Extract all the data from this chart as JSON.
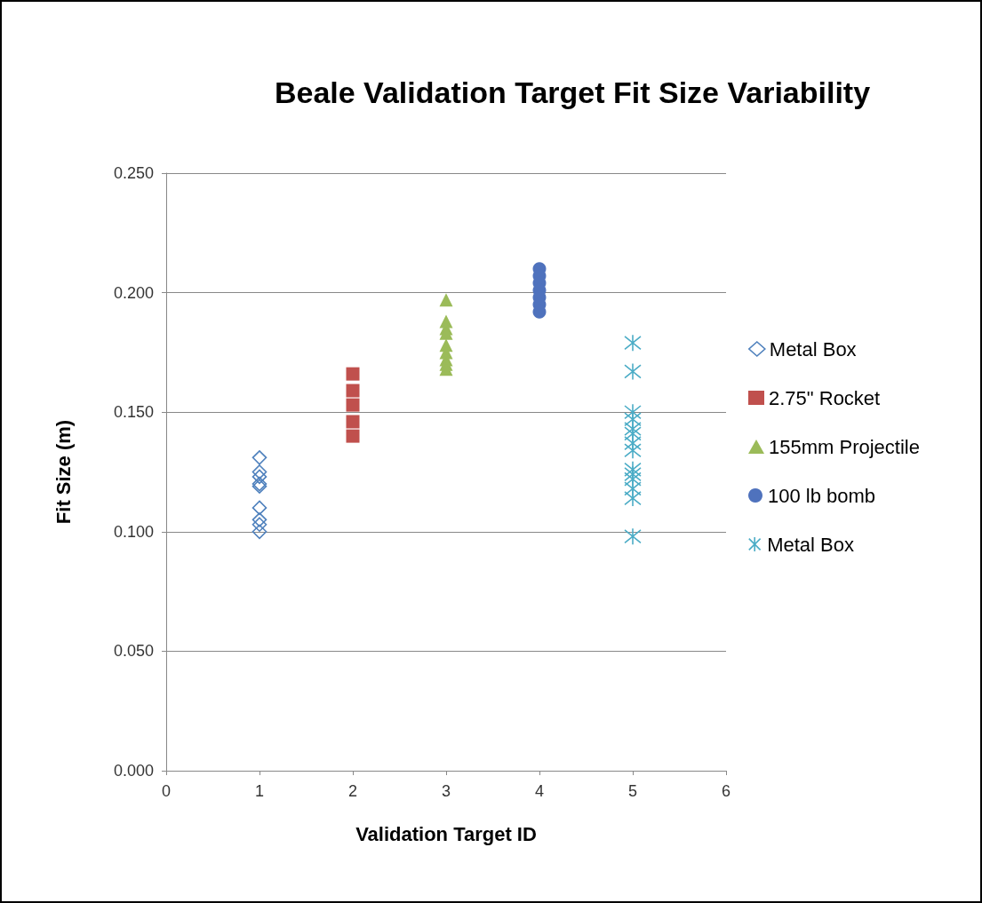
{
  "chart_data": {
    "type": "scatter",
    "title": "Beale Validation Target Fit Size Variability",
    "xlabel": "Validation Target ID",
    "ylabel": "Fit Size (m)",
    "xlim": [
      0,
      6
    ],
    "xticks": [
      0,
      1,
      2,
      3,
      4,
      5,
      6
    ],
    "ylim": [
      0,
      0.25
    ],
    "yticks": [
      {
        "value": 0,
        "label": "0.000"
      },
      {
        "value": 0.05,
        "label": "0.050"
      },
      {
        "value": 0.1,
        "label": "0.100"
      },
      {
        "value": 0.15,
        "label": "0.150"
      },
      {
        "value": 0.2,
        "label": "0.200"
      },
      {
        "value": 0.25,
        "label": "0.250"
      }
    ],
    "grid": "y",
    "legend": "right",
    "series": [
      {
        "name": "Metal Box",
        "color": "#4f81bd",
        "marker": "diamond",
        "x": [
          1,
          1,
          1,
          1,
          1,
          1,
          1,
          1,
          1
        ],
        "values": [
          0.131,
          0.125,
          0.123,
          0.12,
          0.119,
          0.11,
          0.105,
          0.103,
          0.1
        ]
      },
      {
        "name": "2.75\" Rocket",
        "color": "#c0504d",
        "marker": "square",
        "x": [
          2,
          2,
          2,
          2,
          2
        ],
        "values": [
          0.166,
          0.159,
          0.153,
          0.146,
          0.14
        ]
      },
      {
        "name": "155mm Projectile",
        "color": "#9bbb59",
        "marker": "triangle",
        "x": [
          3,
          3,
          3,
          3,
          3,
          3,
          3,
          3,
          3
        ],
        "values": [
          0.197,
          0.188,
          0.185,
          0.183,
          0.178,
          0.175,
          0.172,
          0.17,
          0.168
        ]
      },
      {
        "name": "100 lb bomb",
        "color": "#4f72bd",
        "marker": "circle",
        "x": [
          4,
          4,
          4,
          4,
          4,
          4,
          4
        ],
        "values": [
          0.21,
          0.207,
          0.204,
          0.201,
          0.198,
          0.195,
          0.192
        ]
      },
      {
        "name": "Metal Box",
        "color": "#4bacc6",
        "marker": "star",
        "x": [
          5,
          5,
          5,
          5,
          5,
          5,
          5,
          5,
          5,
          5,
          5,
          5,
          5,
          5
        ],
        "values": [
          0.179,
          0.167,
          0.15,
          0.147,
          0.143,
          0.141,
          0.137,
          0.134,
          0.126,
          0.124,
          0.122,
          0.118,
          0.114,
          0.098
        ]
      }
    ]
  }
}
